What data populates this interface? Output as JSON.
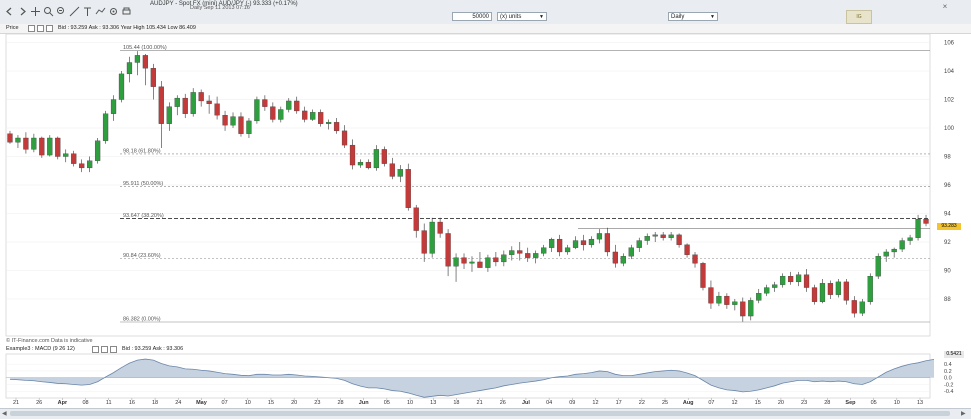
{
  "toolbar": {
    "title": "AUDJPY - Spot FX (mini) AUD/JPY (-)  93.333 (+0.17%)",
    "status": "Daily  Sep 11 2013 07:16",
    "units_qty": "50000",
    "units_label": "(x) units",
    "period": "Daily",
    "logo_text": "IG"
  },
  "price_bar": {
    "label_price": "Price",
    "label_bid": "Bid : 93.259 Ask : 93.306 Year High 105.434 Low 86.409"
  },
  "macd_bar": {
    "label": "Example3 : MACD (9 26 12)",
    "values": "Bid : 93.259 Ask : 93.306"
  },
  "footer_note": "© IT-Finance.com  Data is indicative",
  "tags": {
    "last_price": "93.283",
    "macd_last": "0.5421"
  },
  "colors": {
    "up": "#2e9e3f",
    "down": "#c33a3a",
    "macd_fill": "#c6d2e0",
    "macd_line": "#6a86aa"
  },
  "chart_data": {
    "type": "candlestick",
    "ylim": [
      85.4,
      106.6
    ],
    "y_ticks": [
      88,
      90,
      92,
      94,
      96,
      98,
      100,
      102,
      104,
      106
    ],
    "fib_levels": [
      {
        "label": "105.44 (100.00%)",
        "y": 105.44
      },
      {
        "label": "98.18 (61.80%)",
        "y": 98.18
      },
      {
        "label": "95.911 (50.00%)",
        "y": 95.911
      },
      {
        "label": "93.647 (38.20%)",
        "y": 93.647
      },
      {
        "label": "90.84 (23.60%)",
        "y": 90.84
      },
      {
        "label": "86.382 (0.00%)",
        "y": 86.382
      }
    ],
    "x_labels": [
      "21",
      "26",
      "Apr",
      "08",
      "11",
      "16",
      "18",
      "24",
      "May",
      "07",
      "10",
      "15",
      "20",
      "23",
      "28",
      "Jun",
      "05",
      "10",
      "13",
      "18",
      "21",
      "26",
      "Jul",
      "04",
      "09",
      "12",
      "17",
      "22",
      "25",
      "Aug",
      "07",
      "12",
      "15",
      "20",
      "23",
      "28",
      "Sep",
      "05",
      "10",
      "13"
    ],
    "candles": [
      [
        99.6,
        99.8,
        98.9,
        99.0
      ],
      [
        99.0,
        99.5,
        98.6,
        99.3
      ],
      [
        99.3,
        99.7,
        98.2,
        98.5
      ],
      [
        98.5,
        99.6,
        98.3,
        99.3
      ],
      [
        99.3,
        99.4,
        97.9,
        98.1
      ],
      [
        98.1,
        99.5,
        98.0,
        99.3
      ],
      [
        99.3,
        99.4,
        97.8,
        98.0
      ],
      [
        98.0,
        98.5,
        97.6,
        98.2
      ],
      [
        98.2,
        98.4,
        97.3,
        97.5
      ],
      [
        97.5,
        97.8,
        96.9,
        97.2
      ],
      [
        97.2,
        98.0,
        96.9,
        97.7
      ],
      [
        97.7,
        99.3,
        97.5,
        99.1
      ],
      [
        99.1,
        101.2,
        98.9,
        101.0
      ],
      [
        101.0,
        102.3,
        100.5,
        102.0
      ],
      [
        102.0,
        104.0,
        101.8,
        103.8
      ],
      [
        103.8,
        105.0,
        103.2,
        104.6
      ],
      [
        104.6,
        105.4,
        103.7,
        105.1
      ],
      [
        105.1,
        105.2,
        103.0,
        104.2
      ],
      [
        104.2,
        104.5,
        102.0,
        102.9
      ],
      [
        102.9,
        103.3,
        98.6,
        100.3
      ],
      [
        100.3,
        101.8,
        99.8,
        101.5
      ],
      [
        101.5,
        102.3,
        100.9,
        102.1
      ],
      [
        102.1,
        102.4,
        100.7,
        101.0
      ],
      [
        101.0,
        102.8,
        100.8,
        102.5
      ],
      [
        102.5,
        102.7,
        101.5,
        101.9
      ],
      [
        101.9,
        102.3,
        101.0,
        101.7
      ],
      [
        101.7,
        102.2,
        100.6,
        100.9
      ],
      [
        100.9,
        101.2,
        99.8,
        100.2
      ],
      [
        100.2,
        101.1,
        100.0,
        100.8
      ],
      [
        100.8,
        101.1,
        99.4,
        99.6
      ],
      [
        99.6,
        100.7,
        99.3,
        100.5
      ],
      [
        100.5,
        102.2,
        100.3,
        102.0
      ],
      [
        102.0,
        102.3,
        101.2,
        101.5
      ],
      [
        101.5,
        101.8,
        100.4,
        100.6
      ],
      [
        100.6,
        101.5,
        100.4,
        101.3
      ],
      [
        101.3,
        102.1,
        101.1,
        101.9
      ],
      [
        101.9,
        102.2,
        101.0,
        101.2
      ],
      [
        101.2,
        101.5,
        100.4,
        100.6
      ],
      [
        100.6,
        101.3,
        100.5,
        101.1
      ],
      [
        101.1,
        101.3,
        100.1,
        100.3
      ],
      [
        100.3,
        100.6,
        99.9,
        100.4
      ],
      [
        100.4,
        100.7,
        99.6,
        99.8
      ],
      [
        99.8,
        100.2,
        98.6,
        98.8
      ],
      [
        98.8,
        99.2,
        97.1,
        97.4
      ],
      [
        97.4,
        97.8,
        97.2,
        97.6
      ],
      [
        97.6,
        97.8,
        97.1,
        97.2
      ],
      [
        97.2,
        98.8,
        97.0,
        98.5
      ],
      [
        98.5,
        98.7,
        97.3,
        97.5
      ],
      [
        97.5,
        97.9,
        96.4,
        96.6
      ],
      [
        96.6,
        97.4,
        96.2,
        97.1
      ],
      [
        97.1,
        97.5,
        94.2,
        94.4
      ],
      [
        94.4,
        94.6,
        92.3,
        92.8
      ],
      [
        92.8,
        93.3,
        90.6,
        91.2
      ],
      [
        91.2,
        93.7,
        90.9,
        93.4
      ],
      [
        93.4,
        93.7,
        92.3,
        92.6
      ],
      [
        92.6,
        92.9,
        89.6,
        90.3
      ],
      [
        90.3,
        91.2,
        89.2,
        90.9
      ],
      [
        90.9,
        91.2,
        90.1,
        90.5
      ],
      [
        90.5,
        91.0,
        89.9,
        90.6
      ],
      [
        90.6,
        91.3,
        90.2,
        90.2
      ],
      [
        90.2,
        91.1,
        89.9,
        90.9
      ],
      [
        90.9,
        91.3,
        90.3,
        90.6
      ],
      [
        90.6,
        91.4,
        90.3,
        91.1
      ],
      [
        91.1,
        91.7,
        90.7,
        91.4
      ],
      [
        91.4,
        92.0,
        90.7,
        91.2
      ],
      [
        91.2,
        91.6,
        90.6,
        90.9
      ],
      [
        90.9,
        91.4,
        90.5,
        91.2
      ],
      [
        91.2,
        91.8,
        91.0,
        91.6
      ],
      [
        91.6,
        92.3,
        91.3,
        92.2
      ],
      [
        92.2,
        92.5,
        91.0,
        91.3
      ],
      [
        91.3,
        91.8,
        91.1,
        91.6
      ],
      [
        91.6,
        92.4,
        91.5,
        92.1
      ],
      [
        92.1,
        92.5,
        91.4,
        91.8
      ],
      [
        91.8,
        92.4,
        91.6,
        92.2
      ],
      [
        92.2,
        92.9,
        91.9,
        92.6
      ],
      [
        92.6,
        93.0,
        91.0,
        91.3
      ],
      [
        91.3,
        91.8,
        90.2,
        90.5
      ],
      [
        90.5,
        91.2,
        90.3,
        91.0
      ],
      [
        91.0,
        91.8,
        90.8,
        91.6
      ],
      [
        91.6,
        92.3,
        91.3,
        92.1
      ],
      [
        92.1,
        92.6,
        91.8,
        92.4
      ],
      [
        92.4,
        92.7,
        92.0,
        92.5
      ],
      [
        92.5,
        92.7,
        92.1,
        92.3
      ],
      [
        92.3,
        92.7,
        92.1,
        92.5
      ],
      [
        92.5,
        92.6,
        91.6,
        91.8
      ],
      [
        91.8,
        91.9,
        90.9,
        91.1
      ],
      [
        91.1,
        91.3,
        90.2,
        90.5
      ],
      [
        90.5,
        90.6,
        88.6,
        88.8
      ],
      [
        88.8,
        89.3,
        87.3,
        87.7
      ],
      [
        87.7,
        88.5,
        87.5,
        88.2
      ],
      [
        88.2,
        88.4,
        87.3,
        87.6
      ],
      [
        87.6,
        88.0,
        87.2,
        87.8
      ],
      [
        87.8,
        88.1,
        86.4,
        86.8
      ],
      [
        86.8,
        88.1,
        86.5,
        87.9
      ],
      [
        87.9,
        88.7,
        87.7,
        88.4
      ],
      [
        88.4,
        89.0,
        88.2,
        88.8
      ],
      [
        88.8,
        89.2,
        88.5,
        89.0
      ],
      [
        89.0,
        89.8,
        88.8,
        89.6
      ],
      [
        89.6,
        89.9,
        89.0,
        89.2
      ],
      [
        89.2,
        89.9,
        88.9,
        89.7
      ],
      [
        89.7,
        90.1,
        88.5,
        88.8
      ],
      [
        88.8,
        89.0,
        87.6,
        87.8
      ],
      [
        87.8,
        89.4,
        87.7,
        89.1
      ],
      [
        89.1,
        89.3,
        88.0,
        88.3
      ],
      [
        88.3,
        89.4,
        88.1,
        89.2
      ],
      [
        89.2,
        89.4,
        87.6,
        87.9
      ],
      [
        87.9,
        88.2,
        86.7,
        87.0
      ],
      [
        87.0,
        88.0,
        86.8,
        87.8
      ],
      [
        87.8,
        89.8,
        87.6,
        89.6
      ],
      [
        89.6,
        91.2,
        89.4,
        91.0
      ],
      [
        91.0,
        91.5,
        90.6,
        91.3
      ],
      [
        91.3,
        91.6,
        90.9,
        91.5
      ],
      [
        91.5,
        92.3,
        91.3,
        92.1
      ],
      [
        92.1,
        92.5,
        91.8,
        92.3
      ],
      [
        92.3,
        93.9,
        92.1,
        93.6
      ],
      [
        93.6,
        93.9,
        93.1,
        93.3
      ]
    ],
    "macd": {
      "ylim": [
        -0.6,
        0.7
      ],
      "y_ticks": [
        -0.4,
        -0.2,
        0.0,
        0.2,
        0.4
      ],
      "values": [
        -0.05,
        -0.06,
        -0.08,
        -0.09,
        -0.12,
        -0.14,
        -0.17,
        -0.18,
        -0.2,
        -0.22,
        -0.2,
        -0.12,
        0.02,
        0.15,
        0.3,
        0.43,
        0.52,
        0.55,
        0.52,
        0.42,
        0.35,
        0.32,
        0.26,
        0.25,
        0.22,
        0.2,
        0.16,
        0.12,
        0.1,
        0.07,
        0.06,
        0.1,
        0.1,
        0.08,
        0.08,
        0.1,
        0.08,
        0.05,
        0.04,
        0.02,
        0.0,
        -0.02,
        -0.08,
        -0.18,
        -0.25,
        -0.3,
        -0.3,
        -0.33,
        -0.38,
        -0.4,
        -0.45,
        -0.52,
        -0.58,
        -0.55,
        -0.52,
        -0.54,
        -0.5,
        -0.46,
        -0.42,
        -0.38,
        -0.34,
        -0.3,
        -0.24,
        -0.2,
        -0.16,
        -0.13,
        -0.1,
        -0.06,
        0.0,
        0.03,
        0.05,
        0.1,
        0.12,
        0.15,
        0.2,
        0.18,
        0.1,
        0.06,
        0.06,
        0.1,
        0.14,
        0.18,
        0.2,
        0.22,
        0.2,
        0.14,
        0.06,
        -0.08,
        -0.22,
        -0.3,
        -0.36,
        -0.38,
        -0.42,
        -0.4,
        -0.36,
        -0.3,
        -0.24,
        -0.16,
        -0.12,
        -0.08,
        -0.08,
        -0.12,
        -0.1,
        -0.12,
        -0.1,
        -0.12,
        -0.18,
        -0.2,
        -0.12,
        0.02,
        0.16,
        0.26,
        0.34,
        0.4,
        0.44,
        0.5,
        0.54
      ]
    }
  }
}
